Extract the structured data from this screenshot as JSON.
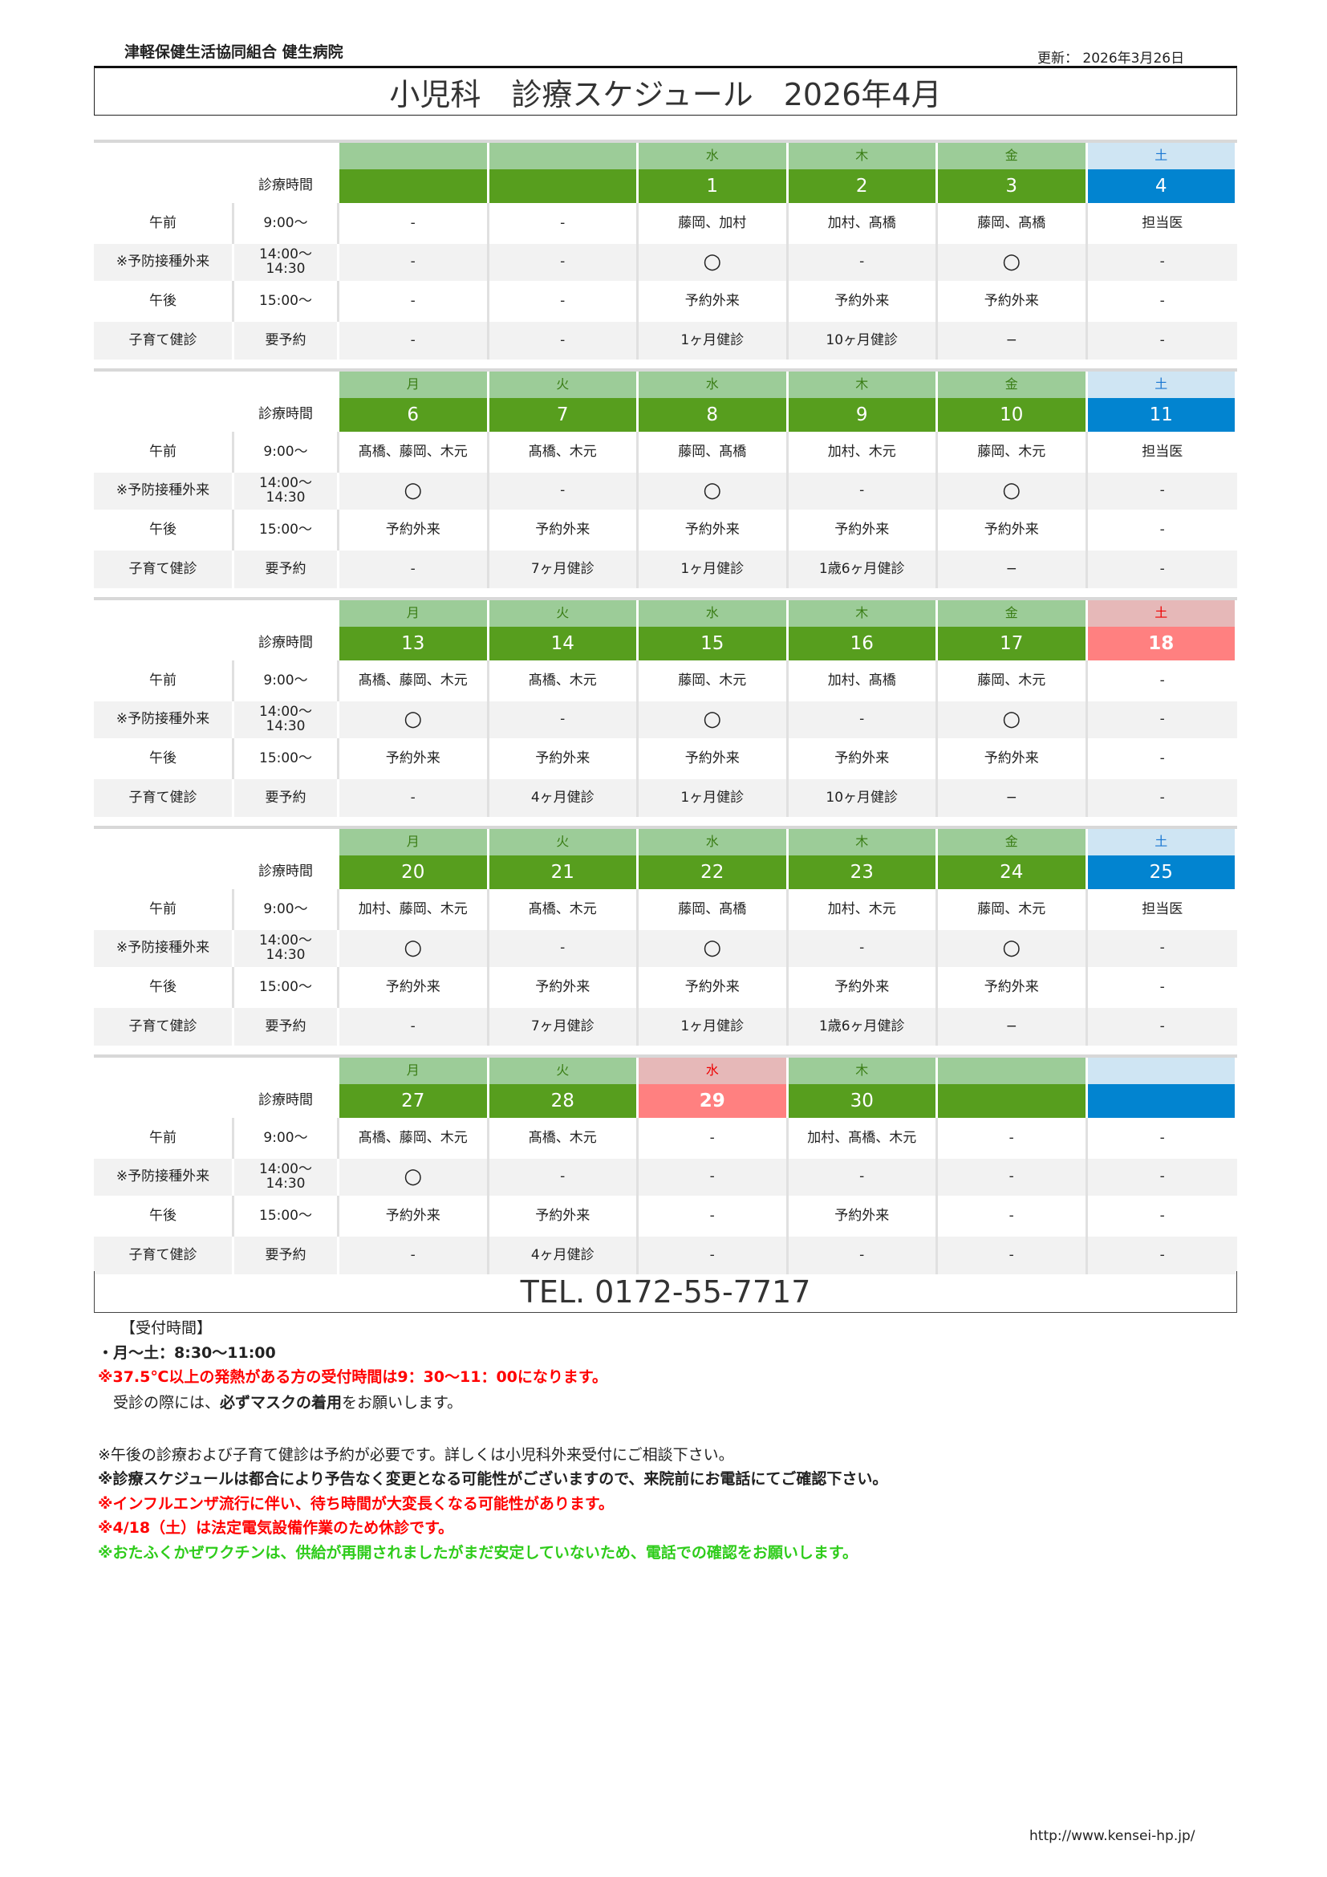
{
  "header": {
    "org": "津軽保健生活協同組合 健生病院",
    "updated": "更新： 2026年3月26日",
    "title": "小児科　診療スケジュール　2026年4月"
  },
  "labels": {
    "time_header": "診療時間",
    "rows": [
      {
        "label": "午前",
        "time": "9:00～"
      },
      {
        "label": "※予防接種外来",
        "time": "14:00～\n14:30"
      },
      {
        "label": "午後",
        "time": "15:00～"
      },
      {
        "label": "子育て健診",
        "time": "要予約"
      }
    ]
  },
  "colors": {
    "day_header": "#9ccc98",
    "date_green": "#579e1e",
    "sat_header": "#cfe5f3",
    "sat_date": "#0284d0",
    "holiday_header": "#e6b8b8",
    "holiday_date": "#ff8080",
    "row_gray": "#f2f2f2"
  },
  "weeks": [
    {
      "days": [
        "",
        "",
        "水",
        "木",
        "金",
        "土"
      ],
      "dates": [
        "",
        "",
        "1",
        "2",
        "3",
        "4"
      ],
      "types": [
        "n",
        "n",
        "n",
        "n",
        "n",
        "sat"
      ],
      "am": [
        "-",
        "-",
        "藤岡、加村",
        "加村、髙橋",
        "藤岡、髙橋",
        "担当医"
      ],
      "vaccine": [
        "-",
        "-",
        "○",
        "-",
        "○",
        "-"
      ],
      "pm": [
        "-",
        "-",
        "予約外来",
        "予約外来",
        "予約外来",
        "-"
      ],
      "checkup": [
        "-",
        "-",
        "1ヶ月健診",
        "10ヶ月健診",
        "−",
        "-"
      ]
    },
    {
      "days": [
        "月",
        "火",
        "水",
        "木",
        "金",
        "土"
      ],
      "dates": [
        "6",
        "7",
        "8",
        "9",
        "10",
        "11"
      ],
      "types": [
        "n",
        "n",
        "n",
        "n",
        "n",
        "sat"
      ],
      "am": [
        "髙橋、藤岡、木元",
        "髙橋、木元",
        "藤岡、髙橋",
        "加村、木元",
        "藤岡、木元",
        "担当医"
      ],
      "vaccine": [
        "○",
        "-",
        "○",
        "-",
        "○",
        "-"
      ],
      "pm": [
        "予約外来",
        "予約外来",
        "予約外来",
        "予約外来",
        "予約外来",
        "-"
      ],
      "checkup": [
        "-",
        "7ヶ月健診",
        "1ヶ月健診",
        "1歳6ヶ月健診",
        "−",
        "-"
      ]
    },
    {
      "days": [
        "月",
        "火",
        "水",
        "木",
        "金",
        "土"
      ],
      "dates": [
        "13",
        "14",
        "15",
        "16",
        "17",
        "18"
      ],
      "types": [
        "n",
        "n",
        "n",
        "n",
        "n",
        "hol"
      ],
      "am": [
        "髙橋、藤岡、木元",
        "髙橋、木元",
        "藤岡、木元",
        "加村、髙橋",
        "藤岡、木元",
        "-"
      ],
      "vaccine": [
        "○",
        "-",
        "○",
        "-",
        "○",
        "-"
      ],
      "pm": [
        "予約外来",
        "予約外来",
        "予約外来",
        "予約外来",
        "予約外来",
        "-"
      ],
      "checkup": [
        "-",
        "4ヶ月健診",
        "1ヶ月健診",
        "10ヶ月健診",
        "−",
        "-"
      ]
    },
    {
      "days": [
        "月",
        "火",
        "水",
        "木",
        "金",
        "土"
      ],
      "dates": [
        "20",
        "21",
        "22",
        "23",
        "24",
        "25"
      ],
      "types": [
        "n",
        "n",
        "n",
        "n",
        "n",
        "sat"
      ],
      "am": [
        "加村、藤岡、木元",
        "髙橋、木元",
        "藤岡、髙橋",
        "加村、木元",
        "藤岡、木元",
        "担当医"
      ],
      "vaccine": [
        "○",
        "-",
        "○",
        "-",
        "○",
        "-"
      ],
      "pm": [
        "予約外来",
        "予約外来",
        "予約外来",
        "予約外来",
        "予約外来",
        "-"
      ],
      "checkup": [
        "-",
        "7ヶ月健診",
        "1ヶ月健診",
        "1歳6ヶ月健診",
        "−",
        "-"
      ]
    },
    {
      "days": [
        "月",
        "火",
        "水",
        "木",
        "",
        ""
      ],
      "dates": [
        "27",
        "28",
        "29",
        "30",
        "",
        ""
      ],
      "types": [
        "n",
        "n",
        "hol",
        "n",
        "n",
        "sat"
      ],
      "am": [
        "髙橋、藤岡、木元",
        "髙橋、木元",
        "-",
        "加村、髙橋、木元",
        "-",
        "-"
      ],
      "vaccine": [
        "○",
        "-",
        "-",
        "-",
        "-",
        "-"
      ],
      "pm": [
        "予約外来",
        "予約外来",
        "-",
        "予約外来",
        "-",
        "-"
      ],
      "checkup": [
        "-",
        "4ヶ月健診",
        "-",
        "-",
        "-",
        "-"
      ]
    }
  ],
  "tel": "TEL. 0172-55-7717",
  "notes": {
    "reception_title": "【受付時間】",
    "reception_hours": "・月～土：8:30～11:00",
    "fever": "※37.5℃以上の発熱がある方の受付時間は9：30～11：00になります。",
    "mask_pre": "　受診の際には、",
    "mask_bold": "必ずマスクの着用",
    "mask_post": "をお願いします。",
    "reservation": "※午後の診療および子育て健診は予約が必要です。詳しくは小児科外来受付にご相談下さい。",
    "change": "※診療スケジュールは都合により予告なく変更となる可能性がございますので、来院前にお電話にてご確認下さい。",
    "influenza": "※インフルエンザ流行に伴い、待ち時間が大変長くなる可能性があります。",
    "closed": "※4/18（土）は法定電気設備作業のため休診です。",
    "vaccine": "※おたふくかぜワクチンは、供給が再開されましたがまだ安定していないため、電話での確認をお願いします。"
  },
  "footer": {
    "url": "http://www.kensei-hp.jp/"
  }
}
